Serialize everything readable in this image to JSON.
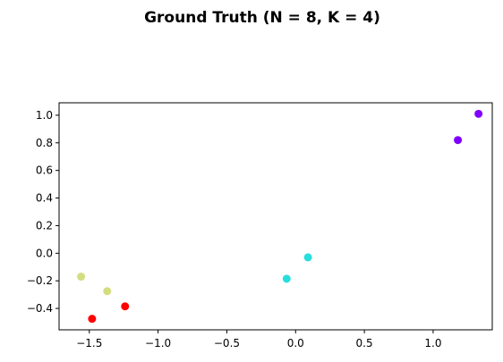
{
  "chart_data": {
    "type": "scatter",
    "title": "Ground Truth (N = 8, K = 4)",
    "xlabel": "",
    "ylabel": "",
    "xlim": [
      -1.72,
      1.43
    ],
    "ylim": [
      -0.555,
      1.09
    ],
    "grid": false,
    "xticks": [
      -1.5,
      -1.0,
      -0.5,
      0.0,
      0.5,
      1.0
    ],
    "xtick_labels": [
      "−1.5",
      "−1.0",
      "−0.5",
      "0.0",
      "0.5",
      "1.0"
    ],
    "yticks": [
      -0.4,
      -0.2,
      0.0,
      0.2,
      0.4,
      0.6,
      0.8,
      1.0
    ],
    "ytick_labels": [
      "−0.4",
      "−0.2",
      "0.0",
      "0.2",
      "0.4",
      "0.6",
      "0.8",
      "1.0"
    ],
    "points": [
      {
        "x": 1.18,
        "y": 0.82,
        "cluster": 0,
        "color": "#8000ff"
      },
      {
        "x": 1.33,
        "y": 1.01,
        "cluster": 0,
        "color": "#8000ff"
      },
      {
        "x": -0.065,
        "y": -0.185,
        "cluster": 1,
        "color": "#2adddd"
      },
      {
        "x": 0.09,
        "y": -0.03,
        "cluster": 1,
        "color": "#2adddd"
      },
      {
        "x": -1.56,
        "y": -0.17,
        "cluster": 2,
        "color": "#d4dd80"
      },
      {
        "x": -1.37,
        "y": -0.275,
        "cluster": 2,
        "color": "#d4dd80"
      },
      {
        "x": -1.48,
        "y": -0.475,
        "cluster": 3,
        "color": "#ff0000"
      },
      {
        "x": -1.24,
        "y": -0.385,
        "cluster": 3,
        "color": "#ff0000"
      }
    ]
  }
}
